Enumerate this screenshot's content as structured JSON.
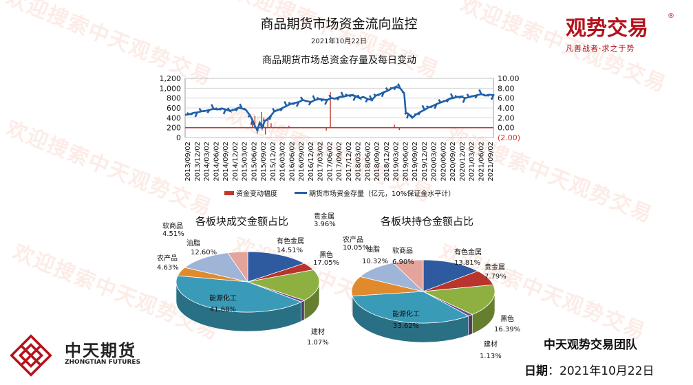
{
  "header": {
    "title": "商品期货市场资金流向监控",
    "date": "2021年10月22日"
  },
  "brand": {
    "name": "观势交易",
    "seal": "®",
    "tagline": "凡善战者·求之于势"
  },
  "watermark": "欢迎搜索中天观势交易",
  "company": {
    "name_cn": "中天期货",
    "name_en": "ZHONGTIAN FUTURES"
  },
  "footer": {
    "team": "中天观势交易团队",
    "date_label": "日期",
    "date_sep": "：",
    "date_value": "2021年10月22日"
  },
  "colors": {
    "line_series": "#1f5fa8",
    "bar_series": "#c0392b",
    "brand_red": "#b5121b",
    "pie": {
      "有色金属": "#2e5aa0",
      "贵金属": "#b8342d",
      "黑色": "#8db040",
      "建材": "#6a4f93",
      "能源化工": "#3a9bb8",
      "农产品": "#e08a2e",
      "油脂": "#9fb5d8",
      "软商品": "#e4a49c"
    }
  },
  "chart_data": [
    {
      "type": "line",
      "title": "商品期货市场总资金存量及每日变动",
      "y_left": {
        "ticks": [
          "0",
          "200",
          "400",
          "600",
          "800",
          "1,000",
          "1,200"
        ],
        "range": [
          0,
          1200
        ]
      },
      "y_right": {
        "ticks": [
          "(2.00)",
          "0.00",
          "2.00",
          "4.00",
          "6.00",
          "8.00",
          "10.00"
        ],
        "range": [
          -2,
          10
        ]
      },
      "x_ticks": [
        "2013/09/02",
        "2013/12/02",
        "2014/03/02",
        "2014/06/02",
        "2014/09/02",
        "2014/12/02",
        "2015/03/02",
        "2015/06/02",
        "2015/09/02",
        "2015/12/02",
        "2016/03/02",
        "2016/06/02",
        "2016/09/02",
        "2016/12/02",
        "2017/03/02",
        "2017/06/02",
        "2017/09/02",
        "2017/12/02",
        "2018/03/02",
        "2018/06/02",
        "2018/09/02",
        "2018/12/02",
        "2019/03/02",
        "2019/06/02",
        "2019/09/02",
        "2019/12/02",
        "2020/03/02",
        "2020/06/02",
        "2020/09/02",
        "2020/12/02",
        "2021/03/02",
        "2021/06/02",
        "2021/09/02"
      ],
      "grid": true,
      "legend_position": "bottom",
      "series": [
        {
          "name": "资金变动幅度",
          "kind": "bar",
          "axis": "right",
          "spikes": [
            {
              "x": 8.3,
              "value": 1.5
            },
            {
              "x": 8.6,
              "value": 2.4
            },
            {
              "x": 8.9,
              "value": -1.2
            },
            {
              "x": 9.1,
              "value": 1.0
            },
            {
              "x": 9.4,
              "value": 3.2
            },
            {
              "x": 9.7,
              "value": 2.0
            },
            {
              "x": 9.9,
              "value": -1.4
            },
            {
              "x": 10.2,
              "value": 1.8
            },
            {
              "x": 10.6,
              "value": 0.9
            },
            {
              "x": 12.8,
              "value": 0.4
            },
            {
              "x": 17.9,
              "value": 7.2
            },
            {
              "x": 17.4,
              "value": -0.6
            },
            {
              "x": 25.8,
              "value": 0.6
            },
            {
              "x": 26.4,
              "value": -0.5
            }
          ]
        },
        {
          "name": "期货市场资金存量（亿元，10%保证金水平计）",
          "kind": "line",
          "axis": "left",
          "points": [
            [
              0,
              460
            ],
            [
              0.5,
              470
            ],
            [
              1,
              500
            ],
            [
              1.5,
              510
            ],
            [
              2,
              530
            ],
            [
              2.5,
              540
            ],
            [
              3,
              560
            ],
            [
              3.5,
              580
            ],
            [
              4,
              570
            ],
            [
              4.5,
              590
            ],
            [
              5,
              570
            ],
            [
              5.5,
              540
            ],
            [
              6,
              560
            ],
            [
              6.5,
              600
            ],
            [
              7,
              590
            ],
            [
              7.5,
              560
            ],
            [
              8,
              450
            ],
            [
              8.3,
              350
            ],
            [
              8.6,
              230
            ],
            [
              8.9,
              150
            ],
            [
              9.2,
              300
            ],
            [
              9.5,
              200
            ],
            [
              9.8,
              330
            ],
            [
              10.2,
              380
            ],
            [
              10.6,
              450
            ],
            [
              11,
              530
            ],
            [
              11.5,
              560
            ],
            [
              12,
              600
            ],
            [
              12.5,
              640
            ],
            [
              13,
              680
            ],
            [
              13.5,
              700
            ],
            [
              14,
              720
            ],
            [
              14.5,
              760
            ],
            [
              15,
              740
            ],
            [
              15.5,
              720
            ],
            [
              16,
              760
            ],
            [
              16.5,
              780
            ],
            [
              17,
              770
            ],
            [
              17.5,
              760
            ],
            [
              18,
              800
            ],
            [
              18.5,
              790
            ],
            [
              19,
              820
            ],
            [
              19.5,
              830
            ],
            [
              20,
              850
            ],
            [
              20.5,
              860
            ],
            [
              21,
              840
            ],
            [
              21.5,
              800
            ],
            [
              22,
              820
            ],
            [
              22.5,
              780
            ],
            [
              23,
              760
            ],
            [
              23.5,
              850
            ],
            [
              24,
              880
            ],
            [
              24.5,
              920
            ],
            [
              25,
              950
            ],
            [
              25.5,
              1000
            ],
            [
              26,
              1030
            ],
            [
              26.5,
              1000
            ],
            [
              27,
              900
            ],
            [
              27.2,
              500
            ],
            [
              27.5,
              480
            ],
            [
              28,
              400
            ],
            [
              28.5,
              470
            ],
            [
              29,
              520
            ],
            [
              29.5,
              560
            ],
            [
              30,
              610
            ],
            [
              30.5,
              640
            ],
            [
              31,
              680
            ],
            [
              31.5,
              710
            ],
            [
              32,
              740
            ],
            [
              32.5,
              780
            ],
            [
              33,
              800
            ],
            [
              33.5,
              820
            ],
            [
              34,
              830
            ],
            [
              34.5,
              800
            ],
            [
              35,
              820
            ],
            [
              35.5,
              840
            ],
            [
              36,
              860
            ],
            [
              36.5,
              880
            ],
            [
              37,
              850
            ],
            [
              37.5,
              870
            ],
            [
              38,
              860
            ]
          ]
        }
      ]
    },
    {
      "type": "pie",
      "title": "各板块成交金额占比",
      "slices": [
        {
          "label": "有色金属",
          "value": 14.51,
          "display": "14.51%"
        },
        {
          "label": "贵金属",
          "value": 3.96,
          "display": "3.96%"
        },
        {
          "label": "黑色",
          "value": 17.05,
          "display": "17.05%"
        },
        {
          "label": "建材",
          "value": 1.07,
          "display": "1.07%"
        },
        {
          "label": "能源化工",
          "value": 41.68,
          "display": "41.68%"
        },
        {
          "label": "农产品",
          "value": 4.63,
          "display": "4.63%"
        },
        {
          "label": "油脂",
          "value": 12.6,
          "display": "12.60%"
        },
        {
          "label": "软商品",
          "value": 4.51,
          "display": "4.51%"
        }
      ]
    },
    {
      "type": "pie",
      "title": "各板块持仓金额占比",
      "slices": [
        {
          "label": "有色金属",
          "value": 13.81,
          "display": "13.81%"
        },
        {
          "label": "贵金属",
          "value": 7.79,
          "display": "7.79%"
        },
        {
          "label": "黑色",
          "value": 16.39,
          "display": "16.39%"
        },
        {
          "label": "建材",
          "value": 1.13,
          "display": "1.13%"
        },
        {
          "label": "能源化工",
          "value": 33.62,
          "display": "33.62%"
        },
        {
          "label": "农产品",
          "value": 10.05,
          "display": "10.05%"
        },
        {
          "label": "油脂",
          "value": 10.32,
          "display": "10.32%"
        },
        {
          "label": "软商品",
          "value": 6.9,
          "display": "6.90%"
        }
      ]
    }
  ]
}
